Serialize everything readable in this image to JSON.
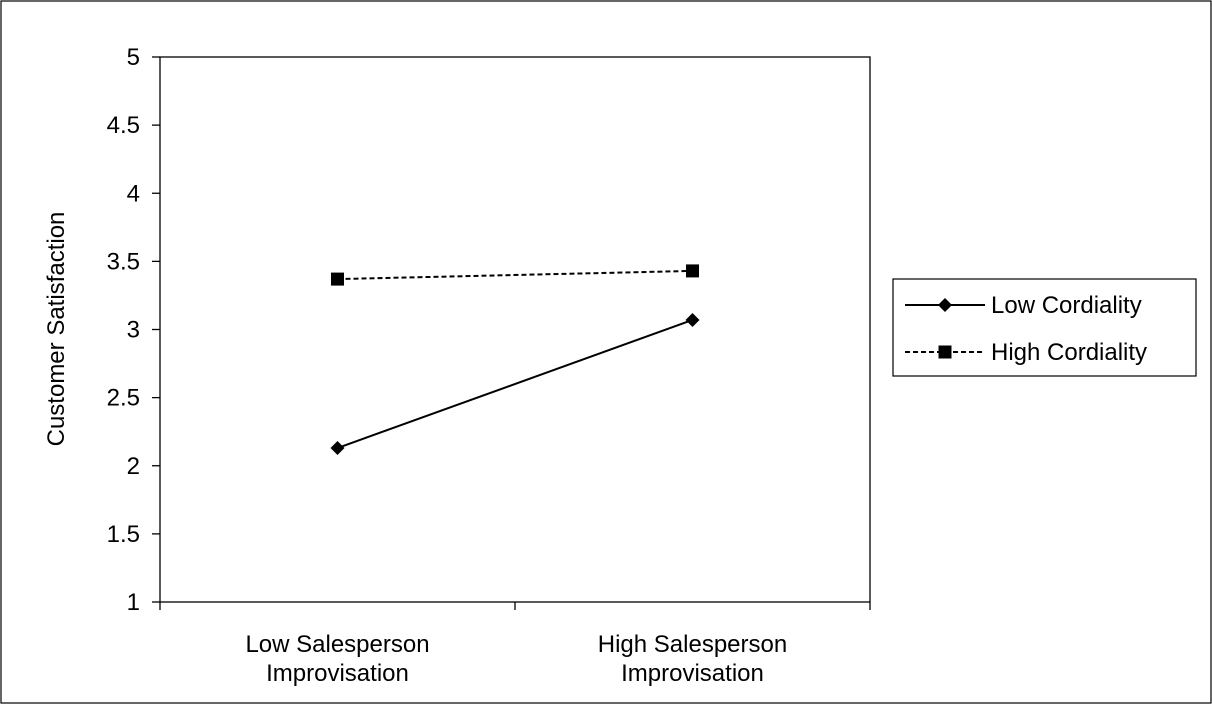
{
  "chart_data": {
    "type": "line",
    "title": "",
    "xlabel": "",
    "ylabel": "Customer Satisfaction",
    "categories": [
      [
        "Low Salesperson",
        "Improvisation"
      ],
      [
        "High Salesperson",
        "Improvisation"
      ]
    ],
    "yticks": [
      "1",
      "1.5",
      "2",
      "2.5",
      "3",
      "3.5",
      "4",
      "4.5",
      "5"
    ],
    "ylim": [
      1,
      5
    ],
    "grid": false,
    "legend_position": "right",
    "series": [
      {
        "name": "Low Cordiality",
        "values": [
          2.13,
          3.07
        ],
        "marker": "diamond",
        "line": "solid",
        "color": "#000000"
      },
      {
        "name": "High Cordiality",
        "values": [
          3.37,
          3.43
        ],
        "marker": "square",
        "line": "dashed",
        "color": "#000000"
      }
    ]
  }
}
